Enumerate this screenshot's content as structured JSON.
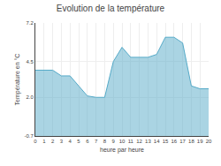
{
  "chart_data": {
    "type": "area",
    "title": "Evolution de la température",
    "xlabel": "heure par heure",
    "ylabel": "Température en °C",
    "x": [
      0,
      1,
      2,
      3,
      4,
      5,
      6,
      7,
      8,
      9,
      10,
      11,
      12,
      13,
      14,
      15,
      16,
      17,
      18,
      19,
      20
    ],
    "values": [
      3.9,
      3.9,
      3.9,
      3.5,
      3.5,
      2.8,
      2.1,
      2.0,
      2.0,
      4.5,
      5.5,
      4.8,
      4.8,
      4.8,
      5.0,
      6.2,
      6.2,
      5.8,
      2.8,
      2.6,
      2.6
    ],
    "color": "#55aac8",
    "xlim": [
      0,
      20
    ],
    "xticks": [
      0,
      1,
      2,
      3,
      4,
      5,
      6,
      7,
      8,
      9,
      10,
      11,
      12,
      13,
      14,
      15,
      16,
      17,
      18,
      19,
      20
    ],
    "ylim": [
      -0.7,
      7.2
    ],
    "yticks": [
      -0.7,
      {
        "value": 2.0,
        "label": "2.0"
      },
      4.5,
      7.2
    ],
    "grid": true
  }
}
